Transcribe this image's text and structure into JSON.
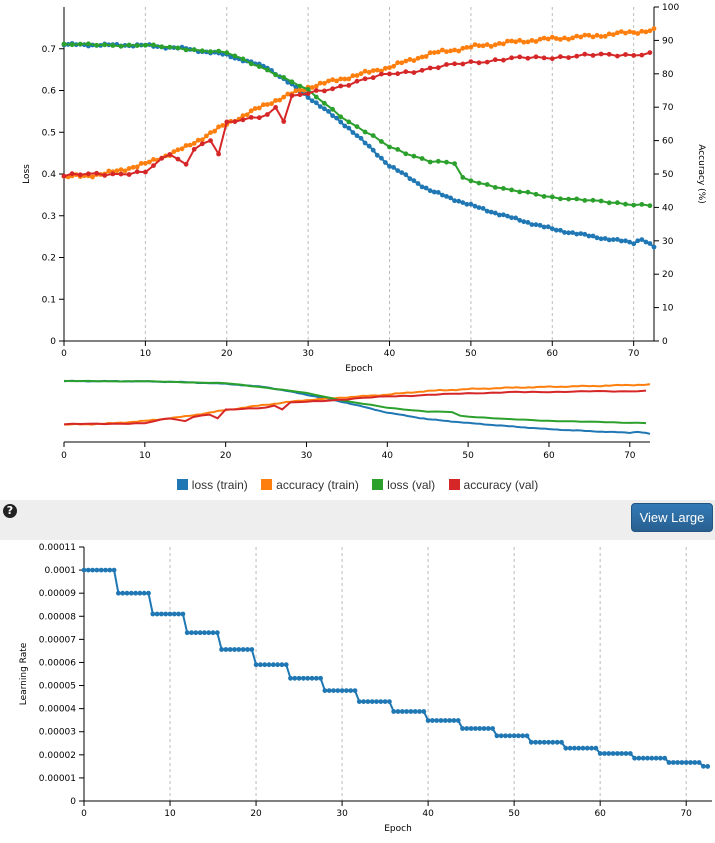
{
  "toolbar": {
    "help_glyph": "?",
    "view_large_label": "View Large",
    "help_icon": "question-circle-icon"
  },
  "colors": {
    "loss_train": "#1f77b4",
    "accuracy_train": "#ff7f0e",
    "loss_val": "#2ca02c",
    "accuracy_val": "#d62728",
    "grid": "#bbbbbb"
  },
  "legend": [
    {
      "key": "loss_train",
      "label": "loss (train)"
    },
    {
      "key": "accuracy_train",
      "label": "accuracy (train)"
    },
    {
      "key": "loss_val",
      "label": "loss (val)"
    },
    {
      "key": "accuracy_val",
      "label": "accuracy (val)"
    }
  ],
  "chart_data": [
    {
      "type": "line",
      "title": "",
      "xlabel": "Epoch",
      "ylabel": "Loss",
      "y2label": "Accuracy (%)",
      "xlim": [
        0,
        72.5
      ],
      "ylim": [
        0,
        0.8
      ],
      "y2lim": [
        0,
        100
      ],
      "xticks": [
        0,
        10,
        20,
        30,
        40,
        50,
        60,
        70
      ],
      "yticks": [
        "0",
        "0.1",
        "0.2",
        "0.3",
        "0.4",
        "0.5",
        "0.6",
        "0.7"
      ],
      "y2ticks": [
        "0",
        "10",
        "20",
        "30",
        "40",
        "50",
        "60",
        "70",
        "80",
        "90",
        "100"
      ],
      "grid": "vertical dashed at x ticks",
      "series": [
        {
          "key": "loss_train",
          "name": "loss (train)",
          "axis": "left",
          "x_step": 0.5,
          "x_start": 0,
          "x_end": 72.5,
          "knots": [
            [
              0,
              0.71
            ],
            [
              10,
              0.708
            ],
            [
              15,
              0.7
            ],
            [
              20,
              0.685
            ],
            [
              25,
              0.655
            ],
            [
              30,
              0.585
            ],
            [
              35,
              0.51
            ],
            [
              40,
              0.42
            ],
            [
              45,
              0.36
            ],
            [
              50,
              0.325
            ],
            [
              55,
              0.295
            ],
            [
              60,
              0.268
            ],
            [
              65,
              0.25
            ],
            [
              70,
              0.235
            ],
            [
              71,
              0.245
            ],
            [
              72.5,
              0.225
            ]
          ]
        },
        {
          "key": "accuracy_train",
          "name": "accuracy (train)",
          "axis": "right",
          "x_step": 0.5,
          "x_start": 0,
          "x_end": 72.5,
          "knots": [
            [
              0,
              49
            ],
            [
              5,
              50
            ],
            [
              10,
              53
            ],
            [
              15,
              58
            ],
            [
              20,
              65
            ],
            [
              25,
              71
            ],
            [
              30,
              76
            ],
            [
              35,
              79
            ],
            [
              40,
              82
            ],
            [
              45,
              86
            ],
            [
              50,
              88
            ],
            [
              55,
              89.5
            ],
            [
              60,
              90.5
            ],
            [
              65,
              91.3
            ],
            [
              70,
              92.5
            ],
            [
              72.5,
              93
            ]
          ]
        },
        {
          "key": "loss_val",
          "name": "loss (val)",
          "axis": "left",
          "x_step": 1,
          "x_start": 0,
          "x_end": 72,
          "knots": [
            [
              0,
              0.71
            ],
            [
              10,
              0.708
            ],
            [
              15,
              0.7
            ],
            [
              20,
              0.69
            ],
            [
              25,
              0.65
            ],
            [
              30,
              0.6
            ],
            [
              35,
              0.525
            ],
            [
              40,
              0.465
            ],
            [
              45,
              0.43
            ],
            [
              48,
              0.425
            ],
            [
              49,
              0.39
            ],
            [
              55,
              0.36
            ],
            [
              60,
              0.345
            ],
            [
              65,
              0.335
            ],
            [
              72,
              0.325
            ]
          ]
        },
        {
          "key": "accuracy_val",
          "name": "accuracy (val)",
          "axis": "right",
          "x_step": 1,
          "x_start": 0,
          "x_end": 72,
          "knots": [
            [
              0,
              49.5
            ],
            [
              10,
              50.5
            ],
            [
              13,
              56
            ],
            [
              15,
              53
            ],
            [
              16,
              58
            ],
            [
              18,
              60
            ],
            [
              19,
              56
            ],
            [
              20,
              65
            ],
            [
              25,
              68
            ],
            [
              26,
              70
            ],
            [
              27,
              66
            ],
            [
              28,
              73
            ],
            [
              30,
              74
            ],
            [
              35,
              77
            ],
            [
              40,
              80
            ],
            [
              45,
              81.5
            ],
            [
              50,
              83.5
            ],
            [
              55,
              84.5
            ],
            [
              60,
              85
            ],
            [
              65,
              85.5
            ],
            [
              72,
              86
            ]
          ]
        }
      ]
    },
    {
      "type": "line",
      "title": "",
      "xlabel": "Epoch",
      "ylabel": "Learning Rate",
      "xlim": [
        0,
        73
      ],
      "ylim": [
        0,
        0.00011
      ],
      "xticks": [
        0,
        10,
        20,
        30,
        40,
        50,
        60,
        70
      ],
      "yticks": [
        "0",
        "0.00001",
        "0.00002",
        "0.00003",
        "0.00004",
        "0.00005",
        "0.00006",
        "0.00007",
        "0.00008",
        "0.00009",
        "0.0001",
        "0.00011"
      ],
      "grid": "vertical dashed at x ticks",
      "series": [
        {
          "key": "loss_train",
          "name": "learning rate",
          "x_step": 0.5,
          "x_start": 0,
          "x_end": 72.5,
          "step_every": 4,
          "initial": 0.0001,
          "decay": 0.9,
          "final_drop": 1.5e-05
        }
      ]
    }
  ]
}
